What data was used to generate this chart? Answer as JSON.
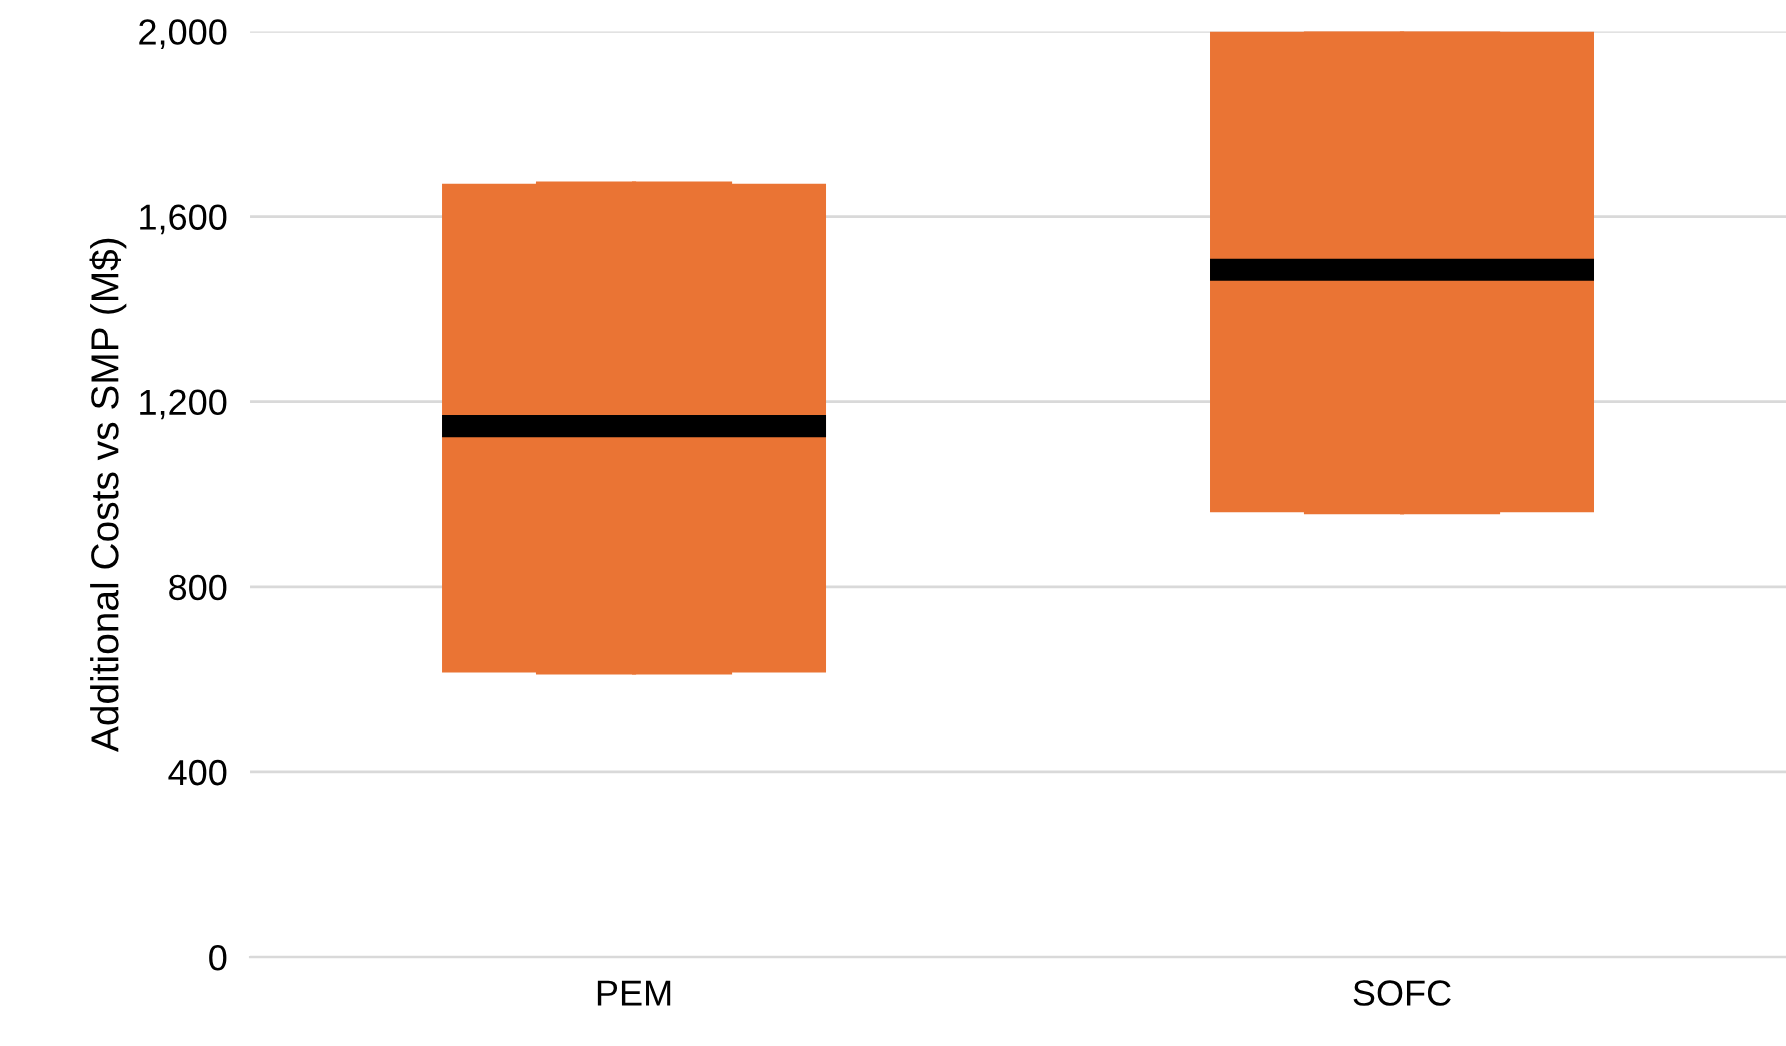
{
  "chart_data": {
    "type": "box",
    "ylabel": "Additional Costs vs SMP (M$)",
    "categories": [
      "PEM",
      "SOFC"
    ],
    "boxes": [
      {
        "low": 615,
        "q1": 615,
        "median": 1147,
        "q3": 1671,
        "high": 1671
      },
      {
        "low": 961,
        "q1": 961,
        "median": 1485,
        "q3": 2000,
        "high": 2000
      }
    ],
    "color": "#ea7434",
    "ylim": [
      0,
      2000
    ],
    "yticks": [
      0,
      {
        "value": 400,
        "label": "400"
      },
      {
        "value": 800,
        "label": "800"
      },
      {
        "value": 1200,
        "label": "1,200"
      },
      {
        "value": 1600,
        "label": "1,600"
      },
      {
        "value": 2000,
        "label": "2,000"
      }
    ],
    "grid": "y",
    "legend": false
  }
}
